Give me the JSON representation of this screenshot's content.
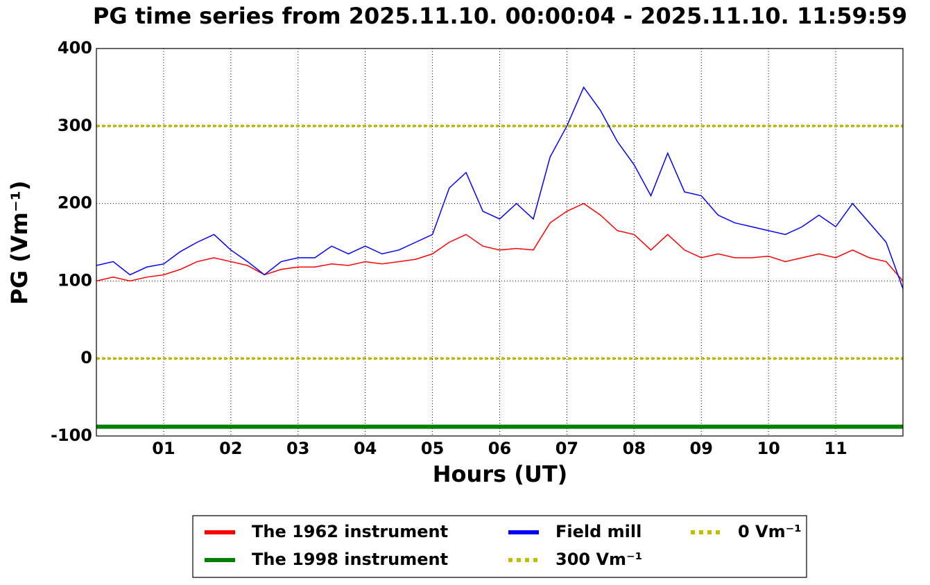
{
  "chart_data": {
    "type": "line",
    "title": "PG time series from 2025.11.10. 00:00:04 - 2025.11.10. 11:59:59",
    "xlabel": "Hours (UT)",
    "ylabel": "PG (Vm⁻¹)",
    "xlim": [
      0,
      12
    ],
    "ylim": [
      -100,
      400
    ],
    "xticks": [
      {
        "value": 1,
        "label": "01"
      },
      {
        "value": 2,
        "label": "02"
      },
      {
        "value": 3,
        "label": "03"
      },
      {
        "value": 4,
        "label": "04"
      },
      {
        "value": 5,
        "label": "05"
      },
      {
        "value": 6,
        "label": "06"
      },
      {
        "value": 7,
        "label": "07"
      },
      {
        "value": 8,
        "label": "08"
      },
      {
        "value": 9,
        "label": "09"
      },
      {
        "value": 10,
        "label": "10"
      },
      {
        "value": 11,
        "label": "11"
      }
    ],
    "yticks": [
      -100,
      0,
      100,
      200,
      300,
      400
    ],
    "grid": true,
    "legend": "lower center",
    "x": [
      0,
      0.25,
      0.5,
      0.75,
      1,
      1.25,
      1.5,
      1.75,
      2,
      2.25,
      2.5,
      2.75,
      3,
      3.25,
      3.5,
      3.75,
      4,
      4.25,
      4.5,
      4.75,
      5,
      5.25,
      5.5,
      5.75,
      6,
      6.25,
      6.5,
      6.75,
      7,
      7.25,
      7.5,
      7.75,
      8,
      8.25,
      8.5,
      8.75,
      9,
      9.25,
      9.5,
      9.75,
      10,
      10.25,
      10.5,
      10.75,
      11,
      11.25,
      11.5,
      11.75,
      12
    ],
    "series": [
      {
        "name": "The 1962 instrument",
        "color": "#ff0000",
        "values": [
          100,
          105,
          100,
          105,
          108,
          115,
          125,
          130,
          125,
          120,
          108,
          115,
          118,
          118,
          122,
          120,
          125,
          122,
          125,
          128,
          135,
          150,
          160,
          145,
          140,
          142,
          140,
          175,
          190,
          200,
          185,
          165,
          160,
          140,
          160,
          140,
          130,
          135,
          130,
          130,
          132,
          125,
          130,
          135,
          130,
          140,
          130,
          125,
          100
        ]
      },
      {
        "name": "The 1998 instrument",
        "color": "#008000",
        "values": [
          -88,
          -88,
          -88,
          -88,
          -88,
          -88,
          -88,
          -88,
          -88,
          -88,
          -88,
          -88,
          -88,
          -88,
          -88,
          -88,
          -88,
          -88,
          -88,
          -88,
          -88,
          -88,
          -88,
          -88,
          -88,
          -88,
          -88,
          -88,
          -88,
          -88,
          -88,
          -88,
          -88,
          -88,
          -88,
          -88,
          -88,
          -88,
          -88,
          -88,
          -88,
          -88,
          -88,
          -88,
          -88,
          -88,
          -88,
          -88,
          -88
        ]
      },
      {
        "name": "Field mill",
        "color": "#0000ff",
        "values": [
          120,
          125,
          108,
          118,
          122,
          138,
          150,
          160,
          140,
          125,
          108,
          125,
          130,
          130,
          145,
          135,
          145,
          135,
          140,
          150,
          160,
          220,
          240,
          190,
          180,
          200,
          180,
          260,
          300,
          350,
          320,
          280,
          250,
          210,
          265,
          215,
          210,
          185,
          175,
          170,
          165,
          160,
          170,
          185,
          170,
          200,
          175,
          150,
          90
        ]
      }
    ],
    "reference_lines": [
      {
        "name": "300 Vm⁻¹",
        "color": "#bfbf00",
        "value": 300
      },
      {
        "name": "0 Vm⁻¹",
        "color": "#bfbf00",
        "value": 0
      }
    ]
  }
}
